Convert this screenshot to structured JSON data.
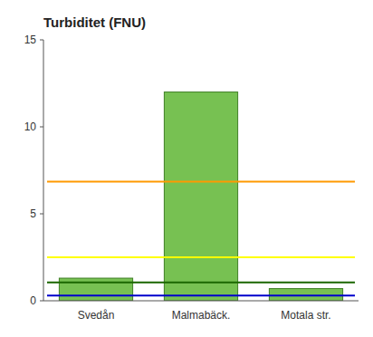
{
  "chart_data": {
    "type": "bar",
    "title": "Turbiditet (FNU)",
    "categories": [
      "Svedån",
      "Malmabäck.",
      "Motala str."
    ],
    "values": [
      1.3,
      12.0,
      0.7
    ],
    "color": "#77c152",
    "hlines": [
      {
        "y": 6.85,
        "color": "#ff9900"
      },
      {
        "y": 2.5,
        "color": "#ffff00"
      },
      {
        "y": 1.05,
        "color": "#1a6600"
      },
      {
        "y": 0.3,
        "color": "#0000cc"
      }
    ],
    "ylim": [
      0,
      15
    ],
    "yticks": [
      0,
      5,
      10,
      15
    ],
    "grid": false
  }
}
